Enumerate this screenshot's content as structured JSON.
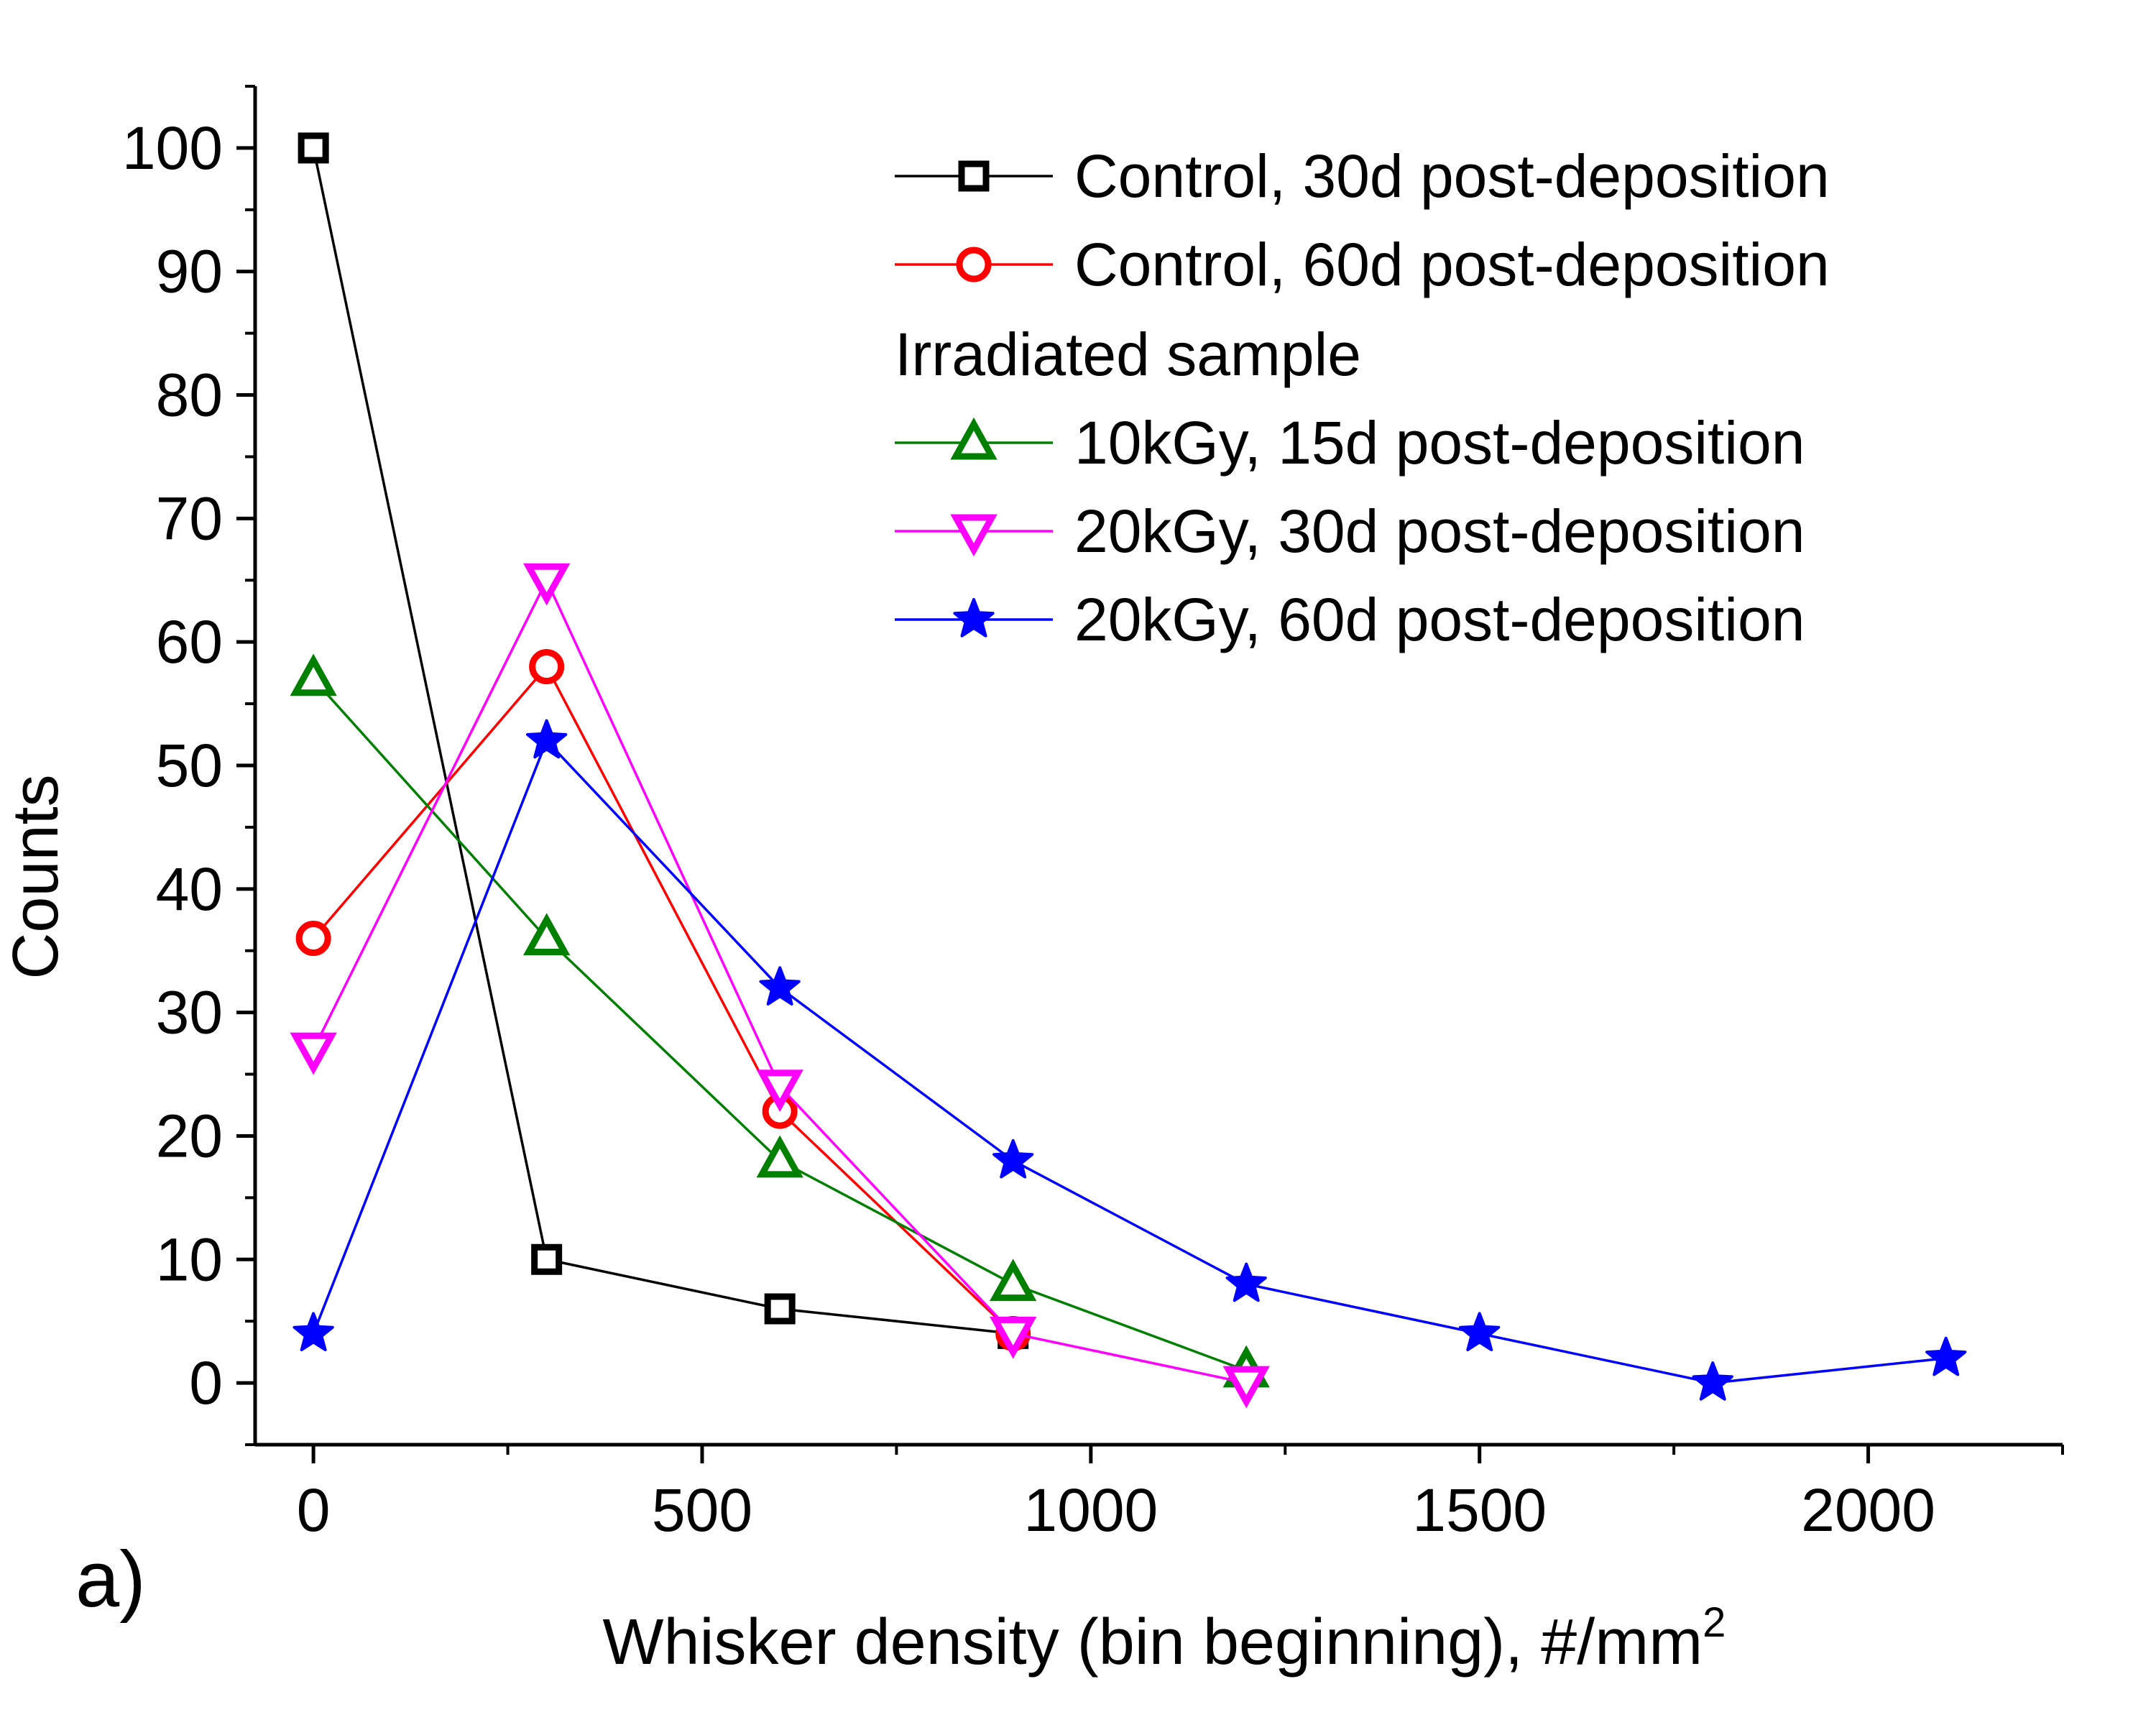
{
  "chart_data": {
    "type": "line",
    "panel_label": "a)",
    "xlabel": "Whisker density (bin beginning), #/mm",
    "xlabel_superscript": "2",
    "ylabel": "Counts",
    "xlim": [
      -75,
      2250
    ],
    "ylim": [
      -5,
      105
    ],
    "x_ticks": [
      0,
      500,
      1000,
      1500,
      2000
    ],
    "y_ticks": [
      0,
      10,
      20,
      30,
      40,
      50,
      60,
      70,
      80,
      90,
      100
    ],
    "legend_position": "top-right",
    "legend_heading": "Irradiated sample",
    "series": [
      {
        "name": "Control, 30d post-deposition",
        "color": "#000000",
        "marker": "square",
        "x": [
          0,
          300,
          600,
          900
        ],
        "y": [
          100,
          10,
          6,
          4
        ]
      },
      {
        "name": "Control, 60d post-deposition",
        "color": "#ff0000",
        "marker": "circle",
        "x": [
          0,
          300,
          600,
          900
        ],
        "y": [
          36,
          58,
          22,
          4
        ]
      },
      {
        "name": "10kGy, 15d post-deposition",
        "color": "#008000",
        "marker": "triangle-up",
        "x": [
          0,
          300,
          600,
          900,
          1200
        ],
        "y": [
          57,
          36,
          18,
          8,
          1
        ]
      },
      {
        "name": "20kGy, 30d post-deposition",
        "color": "#ff00ff",
        "marker": "triangle-down",
        "x": [
          0,
          300,
          600,
          900,
          1200
        ],
        "y": [
          27,
          65,
          24,
          4,
          0
        ]
      },
      {
        "name": "20kGy, 60d post-deposition",
        "color": "#0000ff",
        "marker": "star",
        "x": [
          0,
          300,
          600,
          900,
          1200,
          1500,
          1800,
          2100
        ],
        "y": [
          4,
          52,
          32,
          18,
          8,
          4,
          0,
          2
        ]
      }
    ]
  }
}
